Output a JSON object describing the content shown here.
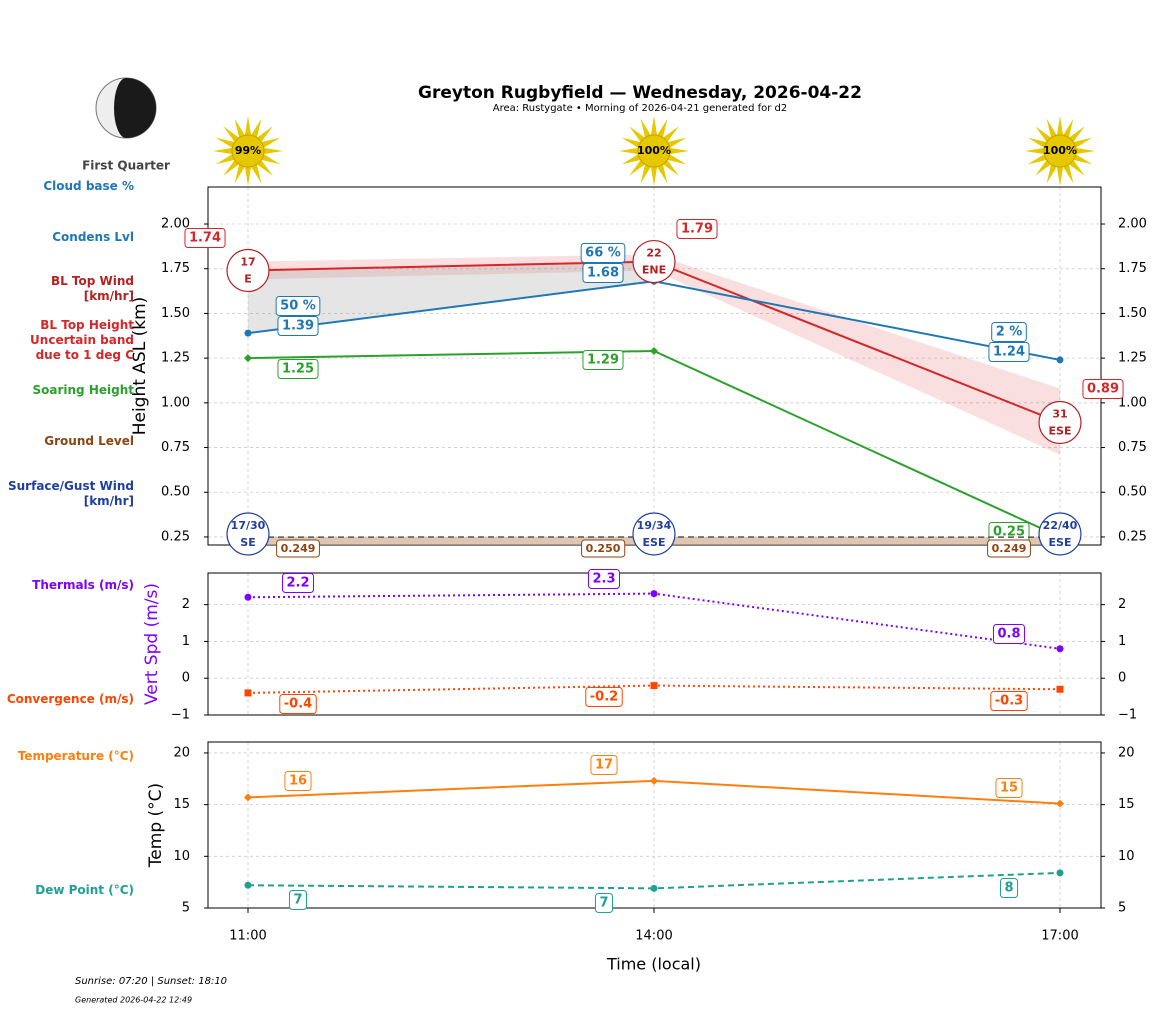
{
  "header": {
    "title": "Greyton Rugbyfield — Wednesday, 2026-04-22",
    "subtitle": "Area: Rustygate • Morning of 2026-04-21 generated for d2",
    "moon_phase": "First Quarter",
    "sun_times": "Sunrise: 07:20 | Sunset: 18:10",
    "generated": "Generated 2026-04-22 12:49"
  },
  "chart_data": [
    {
      "type": "line",
      "ylabel": "Height ASL (km)",
      "ylim": [
        0.205,
        2.207
      ],
      "yticks": [
        0.25,
        {
          "value": 0.5,
          "label": "0.50"
        },
        0.75,
        {
          "value": 1,
          "label": "1.00"
        },
        1.25,
        {
          "value": 1.5,
          "label": "1.50"
        },
        1.75,
        {
          "value": 2,
          "label": "2.00"
        }
      ],
      "grid": true,
      "sunshine": {
        "values": [
          99,
          100,
          100
        ],
        "value_labels": [
          "99%",
          "100%",
          "100%"
        ],
        "color": "#e6c800"
      },
      "series": [
        {
          "name": "BL Top Height\nUncertain band\ndue to 1 deg C",
          "color": "#d62728",
          "values": [
            1.74,
            1.79,
            0.89
          ],
          "band_low": [
            1.69,
            1.74,
            0.71
          ],
          "band_high": [
            1.79,
            1.83,
            1.08
          ]
        },
        {
          "name": "Condens Lvl",
          "color": "#1f77b4",
          "values": [
            1.39,
            1.68,
            1.24
          ]
        },
        {
          "name": "Soaring Height",
          "color": "#2ca02c",
          "values": [
            1.25,
            1.29,
            0.25
          ]
        },
        {
          "name": "Ground Level",
          "color": "#8b4513",
          "values": [
            0.249,
            0.25,
            0.249
          ],
          "value_labels": [
            "0.249",
            "0.250",
            "0.249"
          ]
        }
      ],
      "cloud_base": {
        "name": "Cloud base %",
        "color": "#1f77b4",
        "values": [
          50,
          66,
          2
        ],
        "value_labels": [
          "50 %",
          "66 %",
          "2 %"
        ]
      },
      "bl_top_wind": {
        "name": "BL Top Wind\n[km/hr]",
        "color": "#b22222",
        "values": [
          17,
          22,
          31
        ],
        "directions": [
          "E",
          "ENE",
          "ESE"
        ]
      },
      "surface_wind": {
        "name": "Surface/Gust Wind\n[km/hr]",
        "color": "#1f3fa0",
        "values": [
          17,
          19,
          22
        ],
        "gusts": [
          30,
          34,
          40
        ],
        "value_labels": [
          "17/30",
          "19/34",
          "22/40"
        ],
        "directions": [
          "SE",
          "ESE",
          "ESE"
        ]
      }
    },
    {
      "type": "line",
      "ylabel": "Vert Spd (m/s)",
      "ylabel_color": "#7f00ff",
      "ylim": [
        -1,
        2.86
      ],
      "yticks": [
        {
          "value": -1,
          "label": "−1"
        },
        0,
        1,
        2
      ],
      "grid": true,
      "series": [
        {
          "name": "Thermals (m/s)",
          "color": "#7f00ff",
          "style": "dotted",
          "marker": "circle",
          "values": [
            2.2,
            2.3,
            0.8
          ]
        },
        {
          "name": "Convergence (m/s)",
          "color": "#ff4500",
          "style": "dotted",
          "marker": "square",
          "values": [
            -0.4,
            -0.2,
            -0.3
          ]
        }
      ]
    },
    {
      "type": "line",
      "ylabel": "Temp (°C)",
      "xlabel": "Time (local)",
      "categories": [
        "11:00",
        "14:00",
        "17:00"
      ],
      "ylim": [
        5,
        21.06
      ],
      "yticks": [
        5,
        10,
        15,
        20
      ],
      "grid": true,
      "series": [
        {
          "name": "Temperature (°C)",
          "color": "#ff7f0e",
          "style": "solid",
          "marker": "diamond",
          "values": [
            15.7,
            17.3,
            15.1
          ],
          "value_labels": [
            "16",
            "17",
            "15"
          ]
        },
        {
          "name": "Dew Point (°C)",
          "color": "#20a090",
          "style": "dashed",
          "marker": "circle",
          "values": [
            7.2,
            6.9,
            8.4
          ],
          "value_labels": [
            "7",
            "7",
            "8"
          ]
        }
      ]
    }
  ]
}
